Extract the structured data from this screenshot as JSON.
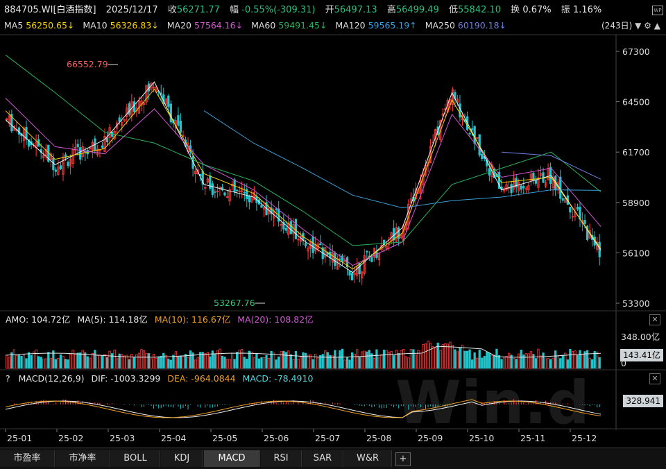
{
  "header": {
    "code": "884705.WI[白酒指数]",
    "date": "2025/12/17",
    "close_label": "收",
    "close": "56271.77",
    "range_label": "幅",
    "change": "-0.55%(-309.31)",
    "open_label": "开",
    "open": "56497.13",
    "high_label": "高",
    "high": "56499.49",
    "low_label": "低",
    "low": "55842.10",
    "turnover_label": "换",
    "turnover": "0.67%",
    "amplitude_label": "振",
    "amplitude": "1.16%"
  },
  "ma_bar": {
    "ma5_label": "MA5",
    "ma5": "56250.65↓",
    "ma10_label": "MA10",
    "ma10": "56326.83↓",
    "ma20_label": "MA20",
    "ma20": "57564.16↓",
    "ma60_label": "MA60",
    "ma60": "59491.45↓",
    "ma120_label": "MA120",
    "ma120": "59565.19↑",
    "ma250_label": "MA250",
    "ma250": "60190.18↓",
    "period": "(243日)"
  },
  "price_axis": [
    "67300",
    "64500",
    "61700",
    "58900",
    "56100",
    "53300"
  ],
  "price_annotations": {
    "high": "66552.79",
    "low": "53267.76"
  },
  "amo_bar": {
    "amo": "AMO: 104.72亿",
    "ma5": "MA(5): 114.18亿",
    "ma10": "MA(10): 116.67亿",
    "ma20": "MA(20): 108.82亿"
  },
  "volume_axis": {
    "top": "348.00亿",
    "badge": "143.41亿",
    "zero": "0"
  },
  "macd_bar": {
    "help": "?",
    "name": "MACD(12,26,9)",
    "dif": "DIF: -1003.3299",
    "dea": "DEA: -964.0844",
    "macd": "MACD: -78.4910"
  },
  "macd_axis": {
    "badge": "328.941"
  },
  "x_axis": [
    "25-01",
    "25-02",
    "25-03",
    "25-04",
    "25-05",
    "25-06",
    "25-07",
    "25-08",
    "25-09",
    "25-10",
    "25-11",
    "25-12"
  ],
  "tabs": [
    "市盈率",
    "市净率",
    "BOLL",
    "KDJ",
    "MACD",
    "RSI",
    "SAR",
    "W&R"
  ],
  "tab_add": "+",
  "colors": {
    "up": "#ff3b3b",
    "down": "#22c5cc",
    "bg": "#000000"
  },
  "chart_data": {
    "type": "line",
    "ylim_price": [
      53300,
      67300
    ],
    "x": [
      "25-01",
      "25-02",
      "25-03",
      "25-04",
      "25-05",
      "25-06",
      "25-07",
      "25-08",
      "25-09",
      "25-10",
      "25-11",
      "25-12",
      "25-12-17"
    ],
    "series": [
      {
        "name": "MA5",
        "values": [
          63500,
          61000,
          62400,
          65600,
          59900,
          59200,
          56800,
          55000,
          57500,
          65000,
          59600,
          60400,
          56250
        ]
      },
      {
        "name": "MA10",
        "values": [
          64000,
          61300,
          61900,
          65200,
          60500,
          59400,
          57000,
          55200,
          57200,
          64600,
          60000,
          60300,
          56330
        ]
      },
      {
        "name": "MA20",
        "values": [
          64700,
          62000,
          61600,
          64100,
          61000,
          59600,
          57400,
          55400,
          56700,
          63800,
          60300,
          60800,
          57560
        ]
      },
      {
        "name": "MA60",
        "values": [
          67100,
          65000,
          62800,
          62200,
          61000,
          60100,
          58400,
          56500,
          56700,
          59900,
          60800,
          61700,
          59490
        ]
      },
      {
        "name": "MA120",
        "values": [
          null,
          null,
          null,
          null,
          64000,
          62200,
          60800,
          59300,
          58600,
          59000,
          59200,
          59600,
          59570
        ]
      },
      {
        "name": "MA250",
        "values": [
          null,
          null,
          null,
          null,
          null,
          null,
          null,
          null,
          null,
          null,
          61700,
          61500,
          60190
        ]
      }
    ]
  }
}
